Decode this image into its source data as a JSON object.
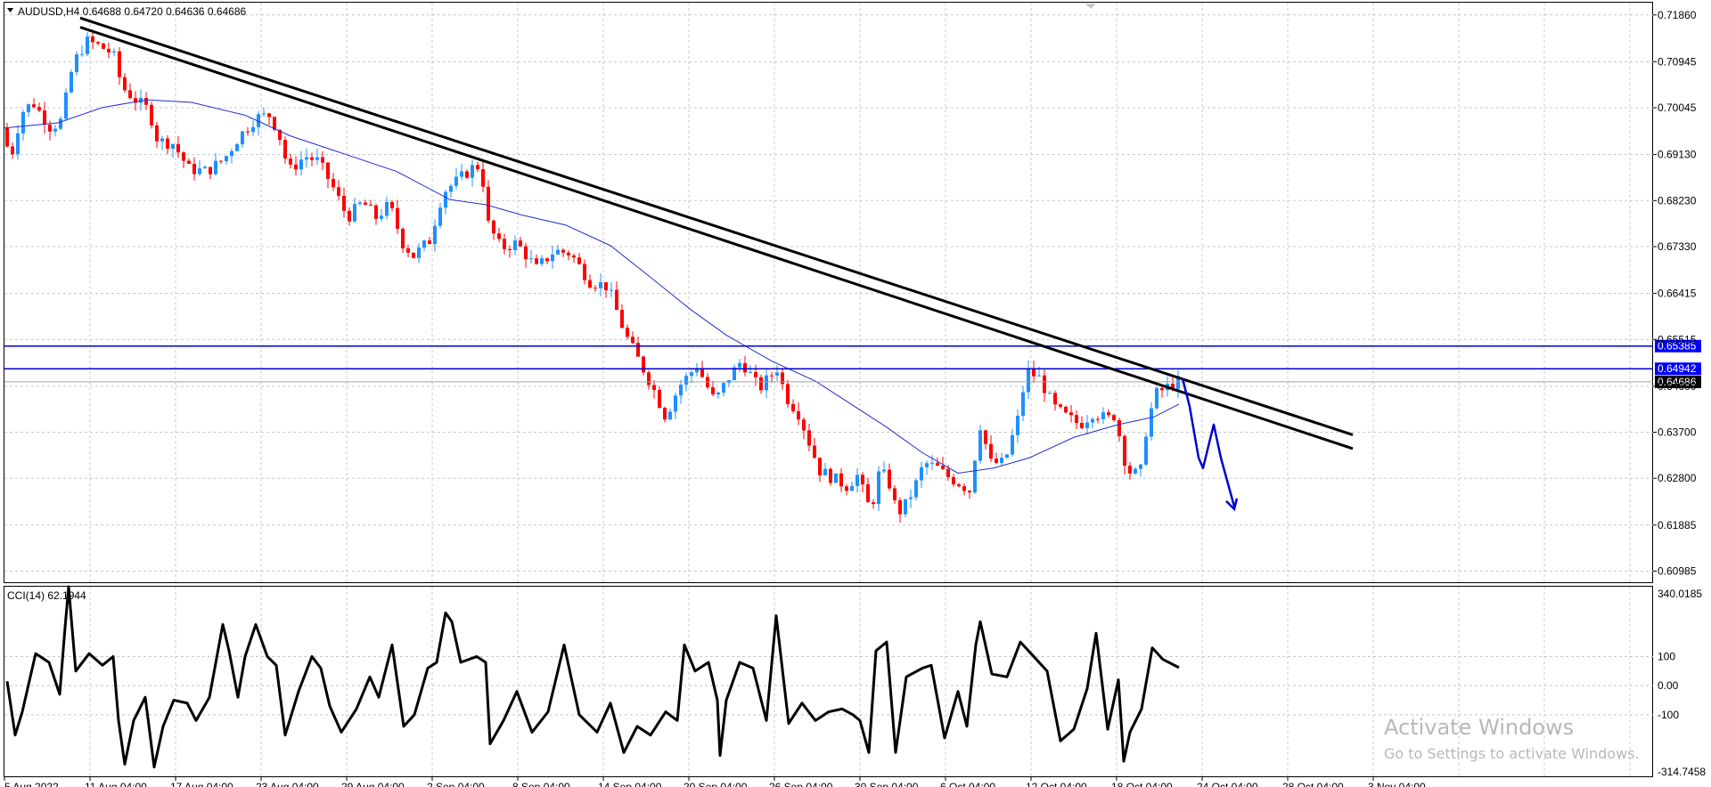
{
  "window": {
    "symbol_line": "AUDUSD,H4  0.64688 0.64720 0.64636 0.64686",
    "indicator_line": "CCI(14) 62.1944"
  },
  "watermark": {
    "title": "Activate Windows",
    "subtitle": "Go to Settings to activate Windows."
  },
  "colors": {
    "background": "#ffffff",
    "grid": "#c8c8c8",
    "bull_candle": "#1e90ff",
    "bear_candle": "#ff0000",
    "moving_average": "#1f2fd0",
    "trendline": "#000000",
    "level_line": "#0000cd",
    "label_blue_bg": "#0000ff",
    "cci_line": "#000000",
    "forecast_arrow": "#0000cd"
  },
  "chart_data": [
    {
      "type": "candlestick",
      "symbol": "AUDUSD",
      "timeframe": "H4",
      "last_ohlc": {
        "open": 0.64688,
        "high": 0.6472,
        "low": 0.64636,
        "close": 0.64686
      },
      "ylim": [
        0.6075,
        0.721
      ],
      "y_ticks": [
        "0.71860",
        "0.70945",
        "0.70045",
        "0.69130",
        "0.68230",
        "0.67330",
        "0.66415",
        "0.65515",
        "0.64600",
        "0.63700",
        "0.62800",
        "0.61885",
        "0.60985"
      ],
      "x_ticks": [
        "5 Aug 2022",
        "11 Aug 04:00",
        "17 Aug 04:00",
        "23 Aug 04:00",
        "29 Aug 04:00",
        "2 Sep 04:00",
        "8 Sep 04:00",
        "14 Sep 04:00",
        "20 Sep 04:00",
        "26 Sep 04:00",
        "30 Sep 04:00",
        "6 Oct 04:00",
        "12 Oct 04:00",
        "18 Oct 04:00",
        "24 Oct 04:00",
        "28 Oct 04:00",
        "3 Nov 04:00"
      ],
      "price_path": [
        [
          0,
          0.6965
        ],
        [
          10,
          0.6905
        ],
        [
          22,
          0.6995
        ],
        [
          35,
          0.7015
        ],
        [
          55,
          0.6965
        ],
        [
          67,
          0.698
        ],
        [
          80,
          0.709
        ],
        [
          95,
          0.7135
        ],
        [
          110,
          0.7125
        ],
        [
          125,
          0.711
        ],
        [
          135,
          0.7045
        ],
        [
          150,
          0.702
        ],
        [
          165,
          0.7
        ],
        [
          175,
          0.694
        ],
        [
          192,
          0.6935
        ],
        [
          210,
          0.6885
        ],
        [
          230,
          0.688
        ],
        [
          250,
          0.6905
        ],
        [
          265,
          0.6945
        ],
        [
          285,
          0.6985
        ],
        [
          300,
          0.699
        ],
        [
          310,
          0.696
        ],
        [
          322,
          0.688
        ],
        [
          340,
          0.691
        ],
        [
          355,
          0.69
        ],
        [
          370,
          0.6855
        ],
        [
          388,
          0.679
        ],
        [
          405,
          0.682
        ],
        [
          420,
          0.679
        ],
        [
          435,
          0.6815
        ],
        [
          450,
          0.674
        ],
        [
          462,
          0.6715
        ],
        [
          480,
          0.6745
        ],
        [
          495,
          0.684
        ],
        [
          510,
          0.686
        ],
        [
          530,
          0.689
        ],
        [
          538,
          0.689
        ],
        [
          545,
          0.678
        ],
        [
          560,
          0.673
        ],
        [
          578,
          0.674
        ],
        [
          600,
          0.669
        ],
        [
          620,
          0.6725
        ],
        [
          638,
          0.672
        ],
        [
          660,
          0.6665
        ],
        [
          680,
          0.6655
        ],
        [
          700,
          0.656
        ],
        [
          715,
          0.651
        ],
        [
          730,
          0.646
        ],
        [
          745,
          0.64
        ],
        [
          760,
          0.646
        ],
        [
          780,
          0.65
        ],
        [
          800,
          0.643
        ],
        [
          815,
          0.6475
        ],
        [
          830,
          0.651
        ],
        [
          850,
          0.6455
        ],
        [
          870,
          0.6495
        ],
        [
          880,
          0.644
        ],
        [
          895,
          0.6405
        ],
        [
          905,
          0.6355
        ],
        [
          918,
          0.6295
        ],
        [
          933,
          0.628
        ],
        [
          948,
          0.6265
        ],
        [
          960,
          0.6285
        ],
        [
          975,
          0.6215
        ],
        [
          985,
          0.6295
        ],
        [
          995,
          0.6275
        ],
        [
          1005,
          0.621
        ],
        [
          1015,
          0.623
        ],
        [
          1025,
          0.6265
        ],
        [
          1035,
          0.631
        ],
        [
          1050,
          0.63
        ],
        [
          1060,
          0.6285
        ],
        [
          1075,
          0.627
        ],
        [
          1087,
          0.6255
        ],
        [
          1097,
          0.639
        ],
        [
          1110,
          0.631
        ],
        [
          1125,
          0.631
        ],
        [
          1140,
          0.6395
        ],
        [
          1150,
          0.649
        ],
        [
          1165,
          0.6475
        ],
        [
          1180,
          0.642
        ],
        [
          1195,
          0.64
        ],
        [
          1210,
          0.6385
        ],
        [
          1225,
          0.641
        ],
        [
          1240,
          0.6395
        ],
        [
          1250,
          0.6405
        ],
        [
          1258,
          0.6325
        ],
        [
          1268,
          0.6285
        ],
        [
          1278,
          0.6295
        ],
        [
          1285,
          0.6385
        ],
        [
          1295,
          0.6445
        ],
        [
          1305,
          0.6455
        ],
        [
          1318,
          0.6469
        ]
      ],
      "moving_average_path": [
        [
          0,
          0.6965
        ],
        [
          60,
          0.6975
        ],
        [
          110,
          0.7005
        ],
        [
          160,
          0.702
        ],
        [
          210,
          0.7015
        ],
        [
          270,
          0.699
        ],
        [
          320,
          0.695
        ],
        [
          380,
          0.6915
        ],
        [
          440,
          0.688
        ],
        [
          500,
          0.6825
        ],
        [
          540,
          0.6815
        ],
        [
          580,
          0.6795
        ],
        [
          630,
          0.6775
        ],
        [
          680,
          0.6735
        ],
        [
          720,
          0.668
        ],
        [
          770,
          0.661
        ],
        [
          810,
          0.656
        ],
        [
          860,
          0.651
        ],
        [
          910,
          0.647
        ],
        [
          950,
          0.6425
        ],
        [
          990,
          0.638
        ],
        [
          1030,
          0.633
        ],
        [
          1070,
          0.629
        ],
        [
          1110,
          0.63
        ],
        [
          1150,
          0.632
        ],
        [
          1200,
          0.636
        ],
        [
          1250,
          0.6385
        ],
        [
          1290,
          0.64
        ],
        [
          1318,
          0.6425
        ]
      ],
      "trendlines": [
        {
          "points": [
            [
              85,
              0.718
            ],
            [
              1513,
              0.6365
            ]
          ]
        },
        {
          "points": [
            [
              85,
              0.7162
            ],
            [
              1513,
              0.6338
            ]
          ]
        }
      ],
      "levels": [
        {
          "price": 0.65385,
          "label": "0.65385",
          "label_style": "blue"
        },
        {
          "price": 0.64942,
          "label": "0.64942",
          "label_style": "blue"
        },
        {
          "price": 0.64686,
          "label": "0.64686",
          "label_style": "black",
          "line": "faint"
        }
      ],
      "forecast_arrow": [
        [
          1322,
          0.6475
        ],
        [
          1330,
          0.642
        ],
        [
          1340,
          0.632
        ],
        [
          1345,
          0.63
        ],
        [
          1352,
          0.635
        ],
        [
          1357,
          0.6385
        ],
        [
          1365,
          0.632
        ],
        [
          1380,
          0.6225
        ]
      ]
    },
    {
      "type": "line",
      "name": "CCI(14) 62.1944",
      "ylim": [
        -314.7458,
        340.0185
      ],
      "y_ticks": [
        "340.0185",
        "100",
        "0.00",
        "-100",
        "-314.7458"
      ],
      "series": [
        [
          3,
          15
        ],
        [
          12,
          -170
        ],
        [
          20,
          -90
        ],
        [
          35,
          110
        ],
        [
          50,
          80
        ],
        [
          62,
          -30
        ],
        [
          68,
          200
        ],
        [
          72,
          340
        ],
        [
          80,
          50
        ],
        [
          95,
          110
        ],
        [
          110,
          70
        ],
        [
          122,
          100
        ],
        [
          128,
          -120
        ],
        [
          135,
          -270
        ],
        [
          145,
          -120
        ],
        [
          158,
          -40
        ],
        [
          168,
          -280
        ],
        [
          178,
          -140
        ],
        [
          190,
          -50
        ],
        [
          205,
          -60
        ],
        [
          215,
          -120
        ],
        [
          230,
          -40
        ],
        [
          245,
          210
        ],
        [
          252,
          120
        ],
        [
          262,
          -40
        ],
        [
          270,
          100
        ],
        [
          282,
          210
        ],
        [
          295,
          100
        ],
        [
          305,
          70
        ],
        [
          315,
          -170
        ],
        [
          330,
          -20
        ],
        [
          345,
          100
        ],
        [
          355,
          60
        ],
        [
          365,
          -70
        ],
        [
          378,
          -160
        ],
        [
          395,
          -80
        ],
        [
          410,
          30
        ],
        [
          420,
          -40
        ],
        [
          435,
          140
        ],
        [
          448,
          -140
        ],
        [
          460,
          -100
        ],
        [
          475,
          60
        ],
        [
          485,
          80
        ],
        [
          495,
          250
        ],
        [
          502,
          220
        ],
        [
          512,
          80
        ],
        [
          530,
          100
        ],
        [
          540,
          80
        ],
        [
          545,
          -200
        ],
        [
          560,
          -120
        ],
        [
          575,
          -20
        ],
        [
          592,
          -160
        ],
        [
          610,
          -90
        ],
        [
          628,
          140
        ],
        [
          645,
          -100
        ],
        [
          665,
          -160
        ],
        [
          680,
          -60
        ],
        [
          695,
          -230
        ],
        [
          710,
          -140
        ],
        [
          725,
          -170
        ],
        [
          742,
          -90
        ],
        [
          755,
          -120
        ],
        [
          763,
          140
        ],
        [
          775,
          50
        ],
        [
          790,
          80
        ],
        [
          800,
          -50
        ],
        [
          803,
          -240
        ],
        [
          810,
          -50
        ],
        [
          825,
          80
        ],
        [
          840,
          60
        ],
        [
          855,
          -120
        ],
        [
          866,
          240
        ],
        [
          880,
          -130
        ],
        [
          895,
          -60
        ],
        [
          910,
          -120
        ],
        [
          925,
          -90
        ],
        [
          940,
          -80
        ],
        [
          952,
          -100
        ],
        [
          960,
          -120
        ],
        [
          970,
          -230
        ],
        [
          978,
          120
        ],
        [
          990,
          150
        ],
        [
          1000,
          -230
        ],
        [
          1012,
          30
        ],
        [
          1030,
          60
        ],
        [
          1040,
          70
        ],
        [
          1055,
          -180
        ],
        [
          1070,
          -20
        ],
        [
          1080,
          -140
        ],
        [
          1090,
          140
        ],
        [
          1095,
          220
        ],
        [
          1108,
          40
        ],
        [
          1125,
          30
        ],
        [
          1140,
          150
        ],
        [
          1155,
          100
        ],
        [
          1170,
          50
        ],
        [
          1185,
          -190
        ],
        [
          1200,
          -150
        ],
        [
          1215,
          -10
        ],
        [
          1225,
          180
        ],
        [
          1238,
          -150
        ],
        [
          1250,
          20
        ],
        [
          1256,
          -260
        ],
        [
          1263,
          -160
        ],
        [
          1276,
          -80
        ],
        [
          1288,
          130
        ],
        [
          1300,
          90
        ],
        [
          1318,
          62
        ]
      ]
    }
  ]
}
